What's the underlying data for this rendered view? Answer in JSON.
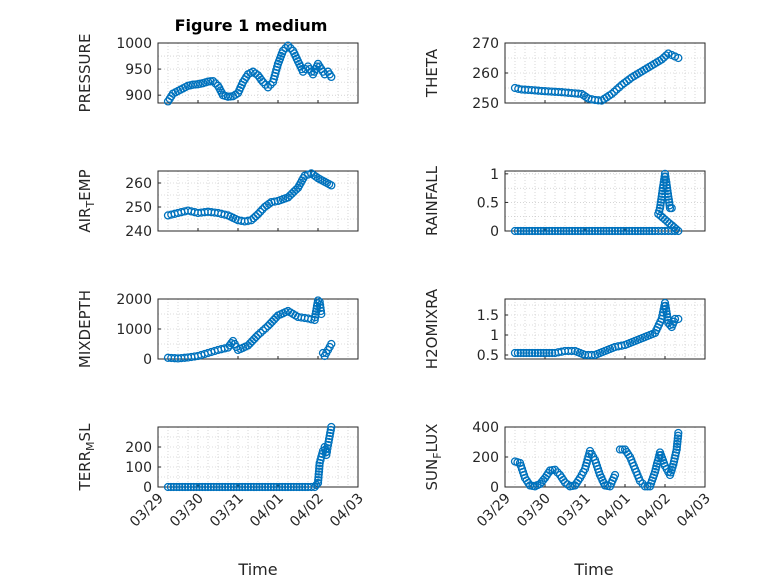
{
  "figure": {
    "title": "Figure 1 medium",
    "xlabel": "Time",
    "marker_color": "#0072BD",
    "date_ticks": [
      "2023-03-29",
      "2023-03-30",
      "2023-03-31",
      "2023-04-01",
      "2023-04-02",
      "2023-04-03"
    ],
    "date_tick_labels": [
      "03/29",
      "03/30",
      "03/31",
      "04/01",
      "04/02",
      "04/03"
    ],
    "x_range": [
      "2023-03-29",
      "2023-04-03"
    ]
  },
  "chart_data": [
    {
      "type": "scatter",
      "id": "pressure",
      "ylabel": "PRESSURE",
      "ylim": [
        885,
        1000
      ],
      "yticks": [
        900,
        950,
        1000
      ],
      "grid": true,
      "x": [
        "2023-03-29T06:00",
        "2023-03-29T09:00",
        "2023-03-29T12:00",
        "2023-03-29T15:00",
        "2023-03-29T18:00",
        "2023-03-29T21:00",
        "2023-03-30T00:00",
        "2023-03-30T03:00",
        "2023-03-30T06:00",
        "2023-03-30T09:00",
        "2023-03-30T12:00",
        "2023-03-30T15:00",
        "2023-03-30T18:00",
        "2023-03-30T21:00",
        "2023-03-31T00:00",
        "2023-03-31T03:00",
        "2023-03-31T06:00",
        "2023-03-31T09:00",
        "2023-03-31T12:00",
        "2023-03-31T15:00",
        "2023-03-31T18:00",
        "2023-03-31T21:00",
        "2023-04-01T00:00",
        "2023-04-01T03:00",
        "2023-04-01T06:00",
        "2023-04-01T09:00",
        "2023-04-01T12:00",
        "2023-04-01T15:00",
        "2023-04-01T18:00",
        "2023-04-01T21:00",
        "2023-04-02T00:00",
        "2023-04-02T02:00",
        "2023-04-02T04:00",
        "2023-04-02T06:00",
        "2023-04-02T08:00"
      ],
      "y": [
        888,
        903,
        908,
        913,
        918,
        920,
        921,
        923,
        926,
        927,
        918,
        900,
        897,
        898,
        904,
        925,
        940,
        945,
        938,
        925,
        915,
        925,
        960,
        985,
        995,
        985,
        965,
        945,
        955,
        940,
        960,
        950,
        940,
        945,
        935
      ]
    },
    {
      "type": "scatter",
      "id": "theta",
      "ylabel": "THETA",
      "ylim": [
        250,
        270
      ],
      "yticks": [
        250,
        260,
        270
      ],
      "grid": true,
      "x": [
        "2023-03-29T06:00",
        "2023-03-29T10:00",
        "2023-03-29T16:00",
        "2023-03-29T22:00",
        "2023-03-30T04:00",
        "2023-03-30T10:00",
        "2023-03-30T16:00",
        "2023-03-30T22:00",
        "2023-03-31T02:00",
        "2023-03-31T06:00",
        "2023-03-31T10:00",
        "2023-03-31T16:00",
        "2023-03-31T22:00",
        "2023-04-01T04:00",
        "2023-04-01T10:00",
        "2023-04-01T16:00",
        "2023-04-01T22:00",
        "2023-04-02T02:00",
        "2023-04-02T06:00",
        "2023-04-02T08:00"
      ],
      "y": [
        255,
        254.5,
        254.3,
        254,
        253.8,
        253.6,
        253.3,
        253,
        251.5,
        251,
        250.8,
        253,
        256,
        258.5,
        260.5,
        262.5,
        264.5,
        266.5,
        265.5,
        265
      ]
    },
    {
      "type": "scatter",
      "id": "air-temp",
      "ylabel": "AIR_TEMP",
      "ylim": [
        240,
        265
      ],
      "yticks": [
        240,
        250,
        260
      ],
      "grid": true,
      "x": [
        "2023-03-29T06:00",
        "2023-03-29T12:00",
        "2023-03-29T18:00",
        "2023-03-30T00:00",
        "2023-03-30T06:00",
        "2023-03-30T12:00",
        "2023-03-30T18:00",
        "2023-03-31T00:00",
        "2023-03-31T04:00",
        "2023-03-31T08:00",
        "2023-03-31T12:00",
        "2023-03-31T16:00",
        "2023-03-31T20:00",
        "2023-04-01T00:00",
        "2023-04-01T06:00",
        "2023-04-01T12:00",
        "2023-04-01T16:00",
        "2023-04-01T20:00",
        "2023-04-02T00:00",
        "2023-04-02T04:00",
        "2023-04-02T08:00"
      ],
      "y": [
        246.5,
        247.5,
        248.5,
        247.5,
        248,
        247.5,
        246.5,
        244.5,
        244,
        244.5,
        247,
        250,
        252,
        252.5,
        254,
        258,
        263,
        264,
        262,
        260.5,
        259
      ]
    },
    {
      "type": "scatter",
      "id": "rainfall",
      "ylabel": "RAINFALL",
      "ylim": [
        0,
        1.05
      ],
      "yticks": [
        0,
        0.5,
        1
      ],
      "grid": true,
      "x": [
        "2023-03-29T06:00",
        "2023-03-29T18:00",
        "2023-03-30T06:00",
        "2023-03-30T18:00",
        "2023-03-31T06:00",
        "2023-03-31T18:00",
        "2023-04-01T06:00",
        "2023-04-01T18:00",
        "2023-04-01T22:00",
        "2023-04-02T00:00",
        "2023-04-02T02:00",
        "2023-04-02T04:00",
        "2023-04-02T06:00",
        "2023-04-02T08:00",
        "2023-04-01T20:00",
        "2023-04-01T21:00",
        "2023-04-02T00:00",
        "2023-04-02T03:00",
        "2023-04-02T04:00"
      ],
      "y": [
        0,
        0,
        0,
        0,
        0,
        0,
        0,
        0,
        0,
        0,
        0,
        0,
        0,
        0,
        0.3,
        0.4,
        1.0,
        0.4,
        0.4
      ]
    },
    {
      "type": "scatter",
      "id": "mixdepth",
      "ylabel": "MIXDEPTH",
      "ylim": [
        0,
        2000
      ],
      "yticks": [
        0,
        1000,
        2000
      ],
      "grid": true,
      "x": [
        "2023-03-29T06:00",
        "2023-03-29T12:00",
        "2023-03-29T18:00",
        "2023-03-30T00:00",
        "2023-03-30T06:00",
        "2023-03-30T12:00",
        "2023-03-30T18:00",
        "2023-03-30T21:00",
        "2023-03-31T00:00",
        "2023-03-31T06:00",
        "2023-03-31T12:00",
        "2023-03-31T18:00",
        "2023-04-01T00:00",
        "2023-04-01T06:00",
        "2023-04-01T12:00",
        "2023-04-01T18:00",
        "2023-04-01T22:00",
        "2023-04-02T00:00",
        "2023-04-02T01:00",
        "2023-04-02T02:00",
        "2023-04-02T03:00",
        "2023-04-02T04:00",
        "2023-04-02T06:00",
        "2023-04-02T08:00"
      ],
      "y": [
        40,
        20,
        50,
        100,
        200,
        300,
        380,
        600,
        300,
        450,
        800,
        1100,
        1450,
        1600,
        1400,
        1350,
        1300,
        1950,
        1900,
        1500,
        200,
        100,
        300,
        500
      ]
    },
    {
      "type": "scatter",
      "id": "h2omixra",
      "ylabel": "H2OMIXRA",
      "ylim": [
        0.4,
        1.9
      ],
      "yticks": [
        0.5,
        1,
        1.5
      ],
      "grid": true,
      "x": [
        "2023-03-29T06:00",
        "2023-03-29T18:00",
        "2023-03-30T06:00",
        "2023-03-30T12:00",
        "2023-03-30T18:00",
        "2023-03-31T00:00",
        "2023-03-31T06:00",
        "2023-03-31T12:00",
        "2023-03-31T18:00",
        "2023-04-01T00:00",
        "2023-04-01T06:00",
        "2023-04-01T12:00",
        "2023-04-01T18:00",
        "2023-04-01T22:00",
        "2023-04-02T00:00",
        "2023-04-02T02:00",
        "2023-04-02T04:00",
        "2023-04-02T06:00",
        "2023-04-02T08:00"
      ],
      "y": [
        0.55,
        0.55,
        0.55,
        0.6,
        0.6,
        0.5,
        0.5,
        0.6,
        0.7,
        0.75,
        0.85,
        0.95,
        1.05,
        1.4,
        1.8,
        1.3,
        1.2,
        1.4,
        1.4
      ]
    },
    {
      "type": "scatter",
      "id": "terr-msl",
      "ylabel": "TERR_MSL",
      "ylim": [
        0,
        300
      ],
      "yticks": [
        0,
        100,
        200
      ],
      "grid": true,
      "x": [
        "2023-03-29T06:00",
        "2023-03-29T18:00",
        "2023-03-30T06:00",
        "2023-03-30T18:00",
        "2023-03-31T06:00",
        "2023-03-31T18:00",
        "2023-04-01T06:00",
        "2023-04-01T18:00",
        "2023-04-01T22:00",
        "2023-04-02T00:00",
        "2023-04-02T01:00",
        "2023-04-02T02:00",
        "2023-04-02T03:00",
        "2023-04-02T04:00",
        "2023-04-02T05:00",
        "2023-04-02T06:00",
        "2023-04-02T08:00"
      ],
      "y": [
        0,
        0,
        0,
        0,
        0,
        0,
        0,
        0,
        0,
        20,
        120,
        150,
        180,
        200,
        160,
        210,
        300
      ]
    },
    {
      "type": "scatter",
      "id": "sun-flux",
      "ylabel": "SUN_FLUX",
      "ylim": [
        0,
        400
      ],
      "yticks": [
        0,
        200,
        400
      ],
      "grid": true,
      "x": [
        "2023-03-29T06:00",
        "2023-03-29T09:00",
        "2023-03-29T12:00",
        "2023-03-29T15:00",
        "2023-03-29T18:00",
        "2023-03-29T21:00",
        "2023-03-30T00:00",
        "2023-03-30T03:00",
        "2023-03-30T06:00",
        "2023-03-30T09:00",
        "2023-03-30T12:00",
        "2023-03-30T15:00",
        "2023-03-30T18:00",
        "2023-03-30T21:00",
        "2023-03-31T00:00",
        "2023-03-31T03:00",
        "2023-03-31T06:00",
        "2023-03-31T09:00",
        "2023-03-31T12:00",
        "2023-03-31T15:00",
        "2023-03-31T18:00",
        "2023-03-31T21:00",
        "2023-04-01T00:00",
        "2023-04-01T03:00",
        "2023-04-01T06:00",
        "2023-04-01T09:00",
        "2023-04-01T12:00",
        "2023-04-01T15:00",
        "2023-04-01T18:00",
        "2023-04-01T21:00",
        "2023-04-02T00:00",
        "2023-04-02T03:00",
        "2023-04-02T05:00",
        "2023-04-02T07:00",
        "2023-04-02T08:00"
      ],
      "y": [
        170,
        160,
        60,
        10,
        5,
        20,
        60,
        110,
        115,
        80,
        30,
        5,
        10,
        60,
        120,
        240,
        180,
        80,
        10,
        5,
        80,
        250,
        250,
        200,
        120,
        40,
        5,
        5,
        100,
        230,
        140,
        80,
        150,
        250,
        360
      ]
    }
  ]
}
